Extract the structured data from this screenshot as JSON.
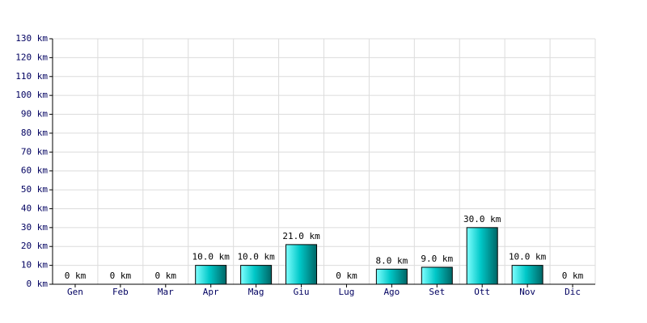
{
  "chart_data": {
    "type": "bar",
    "categories": [
      "Gen",
      "Feb",
      "Mar",
      "Apr",
      "Mag",
      "Giu",
      "Lug",
      "Ago",
      "Set",
      "Ott",
      "Nov",
      "Dic"
    ],
    "values": [
      0,
      0,
      0,
      10,
      10,
      21,
      0,
      8,
      9,
      30,
      10,
      0
    ],
    "value_labels": [
      "0 km",
      "0 km",
      "0 km",
      "10.0 km",
      "10.0 km",
      "21.0 km",
      "0 km",
      "8.0 km",
      "9.0 km",
      "30.0 km",
      "10.0 km",
      "0 km"
    ],
    "color": "#00c8c8",
    "ylim": [
      0,
      130
    ],
    "yticks": [
      {
        "value": 0,
        "label": "0 km"
      },
      {
        "value": 10,
        "label": "10 km"
      },
      {
        "value": 20,
        "label": "20 km"
      },
      {
        "value": 30,
        "label": "30 km"
      },
      {
        "value": 40,
        "label": "40 km"
      },
      {
        "value": 50,
        "label": "50 km"
      },
      {
        "value": 60,
        "label": "60 km"
      },
      {
        "value": 70,
        "label": "70 km"
      },
      {
        "value": 80,
        "label": "80 km"
      },
      {
        "value": 90,
        "label": "90 km"
      },
      {
        "value": 100,
        "label": "100 km"
      },
      {
        "value": 110,
        "label": "110 km"
      },
      {
        "value": 120,
        "label": "120 km"
      },
      {
        "value": 130,
        "label": "130 km"
      }
    ],
    "grid": true
  }
}
